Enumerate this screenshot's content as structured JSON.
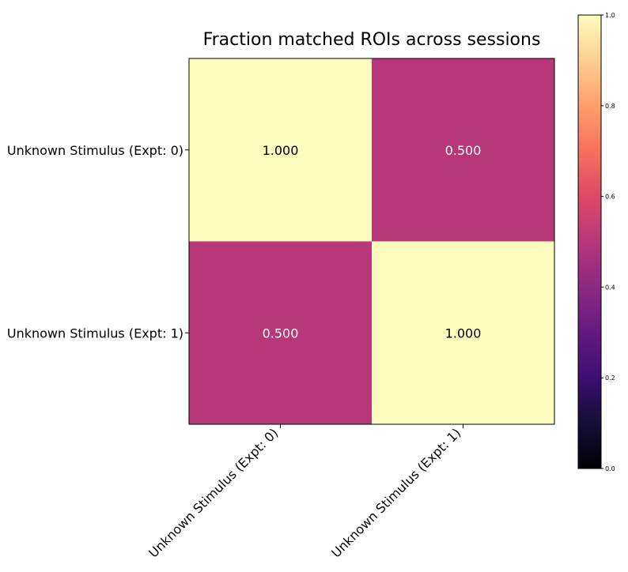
{
  "chart_data": {
    "type": "heatmap",
    "title": "Fraction matched ROIs across sessions",
    "x_categories": [
      "Unknown Stimulus (Expt: 0)",
      "Unknown Stimulus (Expt: 1)"
    ],
    "y_categories": [
      "Unknown Stimulus (Expt: 0)",
      "Unknown Stimulus (Expt: 1)"
    ],
    "values": [
      [
        1.0,
        0.5
      ],
      [
        0.5,
        1.0
      ]
    ],
    "cell_labels": [
      [
        "1.000",
        "0.500"
      ],
      [
        "0.500",
        "1.000"
      ]
    ],
    "colormap": "magma",
    "colorbar": {
      "range": [
        0.0,
        1.0
      ],
      "ticks": [
        0.0,
        0.2,
        0.4,
        0.6,
        0.8,
        1.0
      ],
      "tick_labels": [
        "0.0",
        "0.2",
        "0.4",
        "0.6",
        "0.8",
        "1.0"
      ],
      "placement": "right"
    },
    "colors": {
      "high": "#fcfdbf",
      "mid": "#b73779",
      "low": "#000004",
      "text_on_light": "#000000",
      "text_on_dark": "#ffffff"
    }
  }
}
